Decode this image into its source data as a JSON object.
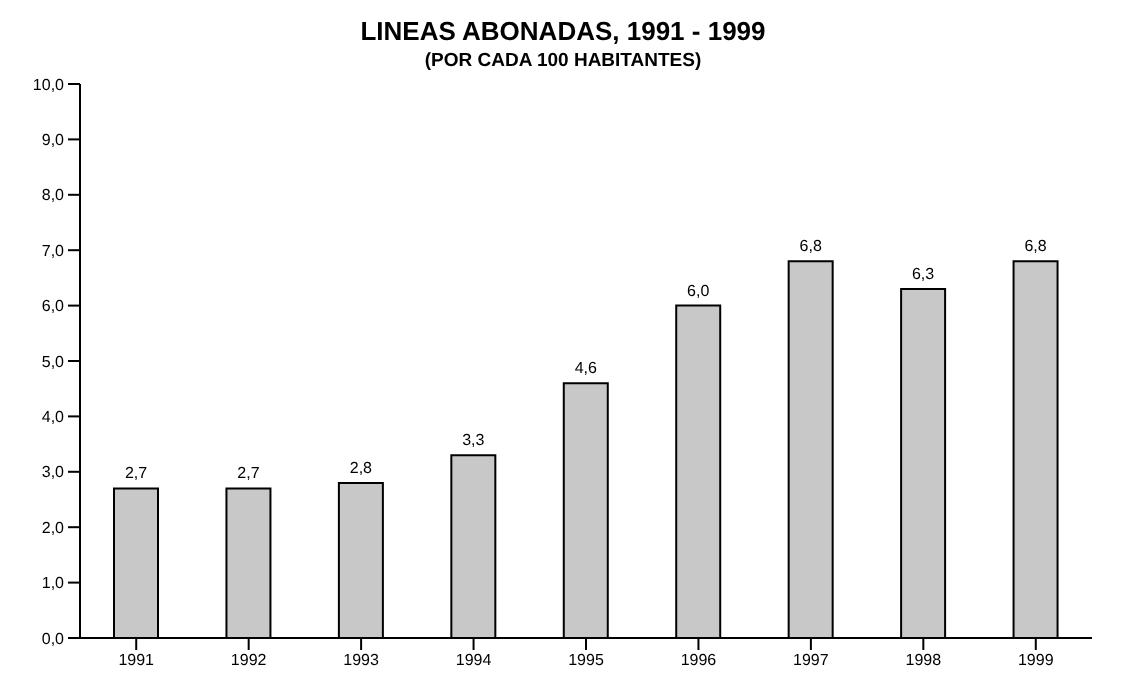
{
  "chart_data": {
    "type": "bar",
    "title": "LINEAS ABONADAS, 1991 - 1999",
    "subtitle": "(POR CADA 100 HABITANTES)",
    "categories": [
      "1991",
      "1992",
      "1993",
      "1994",
      "1995",
      "1996",
      "1997",
      "1998",
      "1999"
    ],
    "values": [
      2.7,
      2.7,
      2.8,
      3.3,
      4.6,
      6.0,
      6.8,
      6.3,
      6.8
    ],
    "value_labels": [
      "2,7",
      "2,7",
      "2,8",
      "3,3",
      "4,6",
      "6,0",
      "6,8",
      "6,3",
      "6,8"
    ],
    "color": "#c8c8c8",
    "ylim": [
      0,
      10
    ],
    "yticks": [
      {
        "value": 0,
        "label": "0,0"
      },
      {
        "value": 1,
        "label": "1,0"
      },
      {
        "value": 2,
        "label": "2,0"
      },
      {
        "value": 3,
        "label": "3,0"
      },
      {
        "value": 4,
        "label": "4,0"
      },
      {
        "value": 5,
        "label": "5,0"
      },
      {
        "value": 6,
        "label": "6,0"
      },
      {
        "value": 7,
        "label": "7,0"
      },
      {
        "value": 8,
        "label": "8,0"
      },
      {
        "value": 9,
        "label": "9,0"
      },
      {
        "value": 10,
        "label": "10,0"
      }
    ],
    "grid": false,
    "legend": false
  }
}
